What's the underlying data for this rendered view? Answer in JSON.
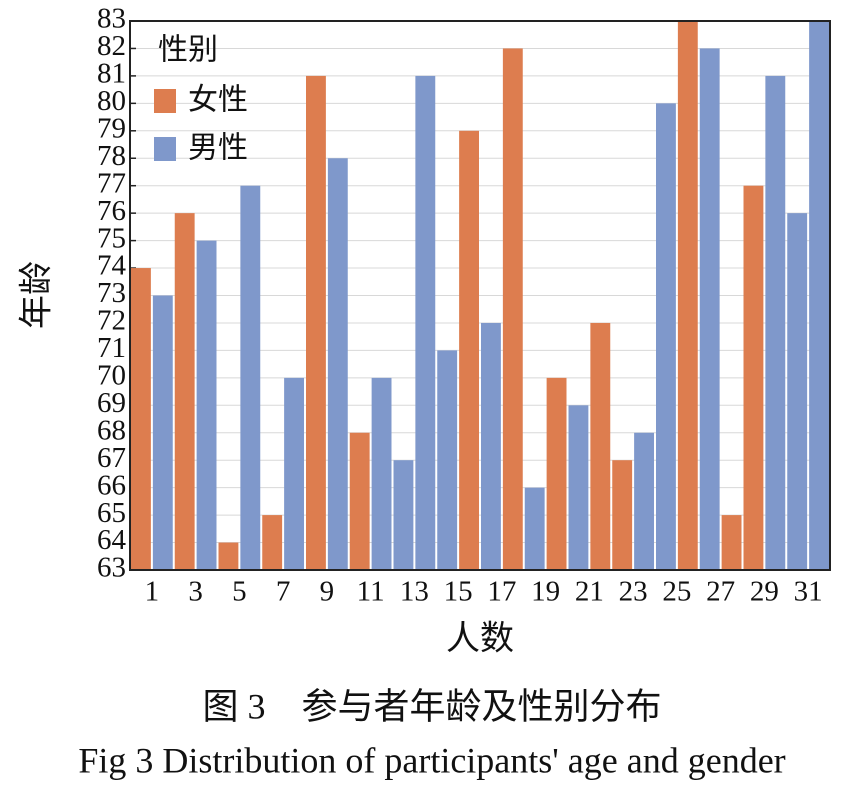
{
  "chart_data": {
    "type": "bar",
    "y_label": "年龄",
    "x_label": "人数",
    "legend_title": "性别",
    "legend": "upper left",
    "grid": true,
    "categories": [
      "1",
      null,
      "3",
      null,
      "5",
      null,
      "7",
      null,
      "9",
      null,
      "11",
      null,
      "13",
      null,
      "15",
      null,
      "17",
      null,
      "19",
      null,
      "21",
      null,
      "23",
      null,
      "25",
      null,
      "27",
      null,
      "29",
      null,
      "31",
      null
    ],
    "series": [
      {
        "name": "女性",
        "color": "#dd7d4f",
        "values": [
          74,
          null,
          76,
          null,
          64,
          null,
          65,
          null,
          81,
          null,
          68,
          null,
          null,
          null,
          null,
          79,
          null,
          82,
          null,
          70,
          null,
          72,
          67,
          null,
          null,
          83,
          null,
          65,
          77,
          null,
          null,
          null
        ]
      },
      {
        "name": "男性",
        "color": "#7f98cb",
        "values": [
          null,
          73,
          null,
          75,
          null,
          77,
          null,
          70,
          null,
          78,
          null,
          70,
          67,
          81,
          71,
          null,
          72,
          null,
          66,
          null,
          69,
          null,
          null,
          68,
          80,
          null,
          82,
          null,
          null,
          81,
          76,
          83
        ]
      }
    ],
    "ylim": [
      63,
      83
    ],
    "yticks": [
      63,
      64,
      65,
      66,
      67,
      68,
      69,
      70,
      71,
      72,
      73,
      74,
      75,
      76,
      77,
      78,
      79,
      80,
      81,
      82,
      83
    ]
  },
  "caption": {
    "cn": "图 3　参与者年龄及性别分布",
    "en": "Fig 3 Distribution of participants' age and gender"
  }
}
